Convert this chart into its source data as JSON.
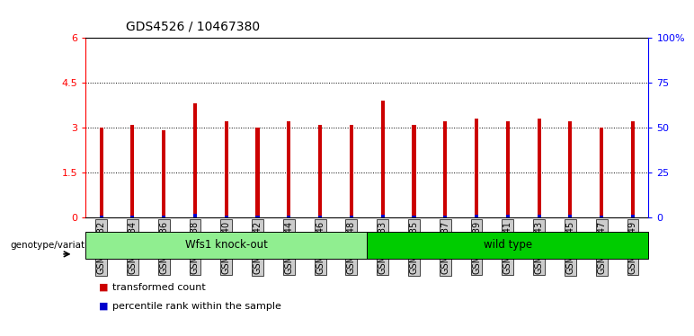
{
  "title": "GDS4526 / 10467380",
  "samples": [
    "GSM825432",
    "GSM825434",
    "GSM825436",
    "GSM825438",
    "GSM825440",
    "GSM825442",
    "GSM825444",
    "GSM825446",
    "GSM825448",
    "GSM825433",
    "GSM825435",
    "GSM825437",
    "GSM825439",
    "GSM825441",
    "GSM825443",
    "GSM825445",
    "GSM825447",
    "GSM825449"
  ],
  "red_values": [
    3.0,
    3.1,
    2.9,
    3.8,
    3.2,
    3.0,
    3.2,
    3.1,
    3.1,
    3.9,
    3.1,
    3.2,
    3.3,
    3.2,
    3.3,
    3.2,
    3.0,
    3.2
  ],
  "blue_values": [
    0.05,
    0.05,
    0.05,
    0.12,
    0.07,
    0.05,
    0.07,
    0.07,
    0.07,
    0.08,
    0.05,
    0.06,
    0.09,
    0.08,
    0.09,
    0.08,
    0.05,
    0.08
  ],
  "ylim_left": [
    0,
    6
  ],
  "ylim_right": [
    0,
    100
  ],
  "yticks_left": [
    0,
    1.5,
    3.0,
    4.5,
    6.0
  ],
  "ytick_labels_left": [
    "0",
    "1.5",
    "3",
    "4.5",
    "6"
  ],
  "yticks_right": [
    0,
    25,
    50,
    75,
    100
  ],
  "ytick_labels_right": [
    "0",
    "25",
    "50",
    "75",
    "100%"
  ],
  "group1_label": "Wfs1 knock-out",
  "group2_label": "wild type",
  "group1_count": 9,
  "group2_count": 9,
  "group1_color": "#90EE90",
  "group2_color": "#00CC00",
  "red_color": "#CC0000",
  "blue_color": "#0000CC",
  "legend_red": "transformed count",
  "legend_blue": "percentile rank within the sample",
  "bar_width": 0.12,
  "background_color": "#ffffff",
  "plot_bg_color": "#ffffff",
  "tick_bg_color": "#cccccc"
}
